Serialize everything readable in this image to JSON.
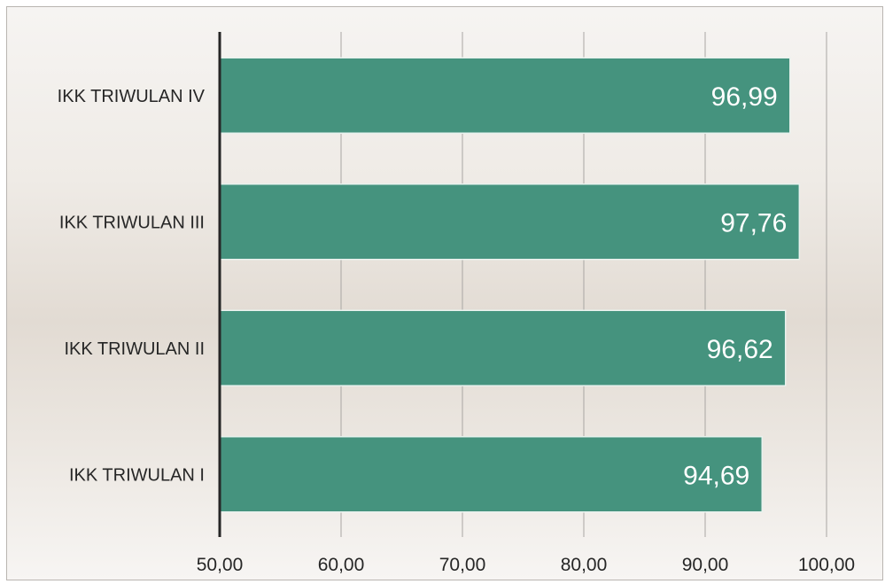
{
  "chart_data": {
    "type": "bar",
    "orientation": "horizontal",
    "title": "",
    "xlabel": "",
    "ylabel": "",
    "categories": [
      "IKK TRIWULAN IV",
      "IKK TRIWULAN III",
      "IKK TRIWULAN II",
      "IKK TRIWULAN I"
    ],
    "values": [
      96.99,
      97.76,
      96.62,
      94.69
    ],
    "data_labels": [
      "96,99",
      "97,76",
      "96,62",
      "94,69"
    ],
    "xlim": [
      50,
      100
    ],
    "ticks": [
      50,
      60,
      70,
      80,
      90,
      100
    ],
    "tick_labels": [
      "50,00",
      "60,00",
      "70,00",
      "80,00",
      "90,00",
      "100,00"
    ],
    "grid": true,
    "legend": "none",
    "bar_color": "#45937e",
    "bar_edge_color": "#e9f2ee",
    "axis_color": "#262626",
    "grid_color": "#a9a6a3"
  }
}
